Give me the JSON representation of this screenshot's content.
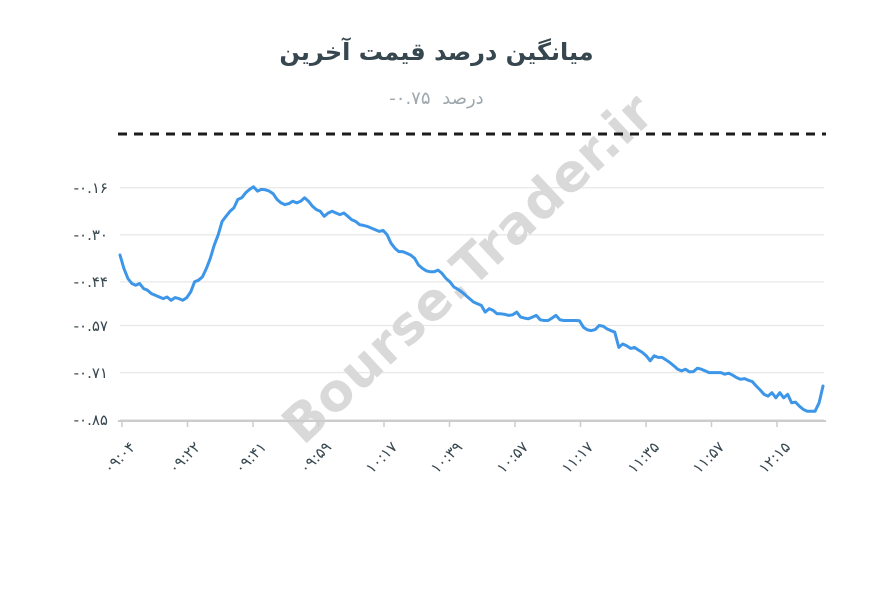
{
  "title": "میانگین درصد قیمت آخرین",
  "subtitle": {
    "value": "-۰.۷۵",
    "unit": "درصد"
  },
  "watermark": "Bourse.Trader.ir",
  "colors": {
    "series": "#3d96e8",
    "grid": "#e8e8e8",
    "axis": "#cccccc",
    "zero_line": "#1c1c1c",
    "title": "#37474f",
    "subtitle": "#9ea7ad",
    "label": "#37474f",
    "watermark": "#d9d9d9",
    "background": "#ffffff"
  },
  "chart_data": {
    "type": "line",
    "title": "میانگین درصد قیمت آخرین",
    "subtitle": "-۰.۷۵ درصد",
    "xlabel": "",
    "ylabel": "",
    "grid": "horizontal",
    "legend": "none",
    "zero_reference_value": 0,
    "ylim": [
      -0.87,
      0.02
    ],
    "y_tick_labels": [
      "-۰.۱۶",
      "-۰.۳۰",
      "-۰.۴۴",
      "-۰.۵۷",
      "-۰.۷۱",
      "-۰.۸۵"
    ],
    "y_tick_values": [
      -0.16,
      -0.3,
      -0.44,
      -0.57,
      -0.71,
      -0.85
    ],
    "x_tick_labels": [
      "۰۹:۰۴",
      "۰۹:۲۲",
      "۰۹:۴۱",
      "۰۹:۵۹",
      "۱۰:۱۷",
      "۱۰:۳۹",
      "۱۰:۵۷",
      "۱۱:۱۷",
      "۱۱:۳۵",
      "۱۱:۵۷",
      "۱۲:۱۵"
    ],
    "x_tick_labels_latin": [
      "09:04",
      "09:22",
      "09:41",
      "09:59",
      "10:17",
      "10:39",
      "10:57",
      "11:17",
      "11:35",
      "11:57",
      "12:15"
    ],
    "series": [
      {
        "name": "میانگین درصد قیمت آخرین",
        "values": [
          -0.36,
          -0.4,
          -0.43,
          -0.445,
          -0.45,
          -0.445,
          -0.46,
          -0.465,
          -0.475,
          -0.48,
          -0.485,
          -0.49,
          -0.485,
          -0.495,
          -0.487,
          -0.49,
          -0.495,
          -0.487,
          -0.47,
          -0.44,
          -0.435,
          -0.425,
          -0.4,
          -0.37,
          -0.33,
          -0.3,
          -0.26,
          -0.245,
          -0.23,
          -0.22,
          -0.195,
          -0.19,
          -0.175,
          -0.165,
          -0.157,
          -0.17,
          -0.165,
          -0.166,
          -0.17,
          -0.178,
          -0.195,
          -0.205,
          -0.21,
          -0.207,
          -0.2,
          -0.205,
          -0.2,
          -0.19,
          -0.2,
          -0.215,
          -0.225,
          -0.23,
          -0.245,
          -0.235,
          -0.23,
          -0.235,
          -0.24,
          -0.235,
          -0.245,
          -0.255,
          -0.26,
          -0.27,
          -0.272,
          -0.275,
          -0.28,
          -0.285,
          -0.29,
          -0.287,
          -0.3,
          -0.325,
          -0.34,
          -0.35,
          -0.35,
          -0.355,
          -0.36,
          -0.37,
          -0.39,
          -0.4,
          -0.407,
          -0.41,
          -0.41,
          -0.405,
          -0.415,
          -0.43,
          -0.44,
          -0.455,
          -0.462,
          -0.47,
          -0.48,
          -0.49,
          -0.5,
          -0.505,
          -0.51,
          -0.53,
          -0.52,
          -0.525,
          -0.535,
          -0.535,
          -0.537,
          -0.54,
          -0.538,
          -0.53,
          -0.545,
          -0.548,
          -0.55,
          -0.545,
          -0.54,
          -0.553,
          -0.555,
          -0.555,
          -0.548,
          -0.54,
          -0.553,
          -0.555,
          -0.555,
          -0.555,
          -0.555,
          -0.556,
          -0.575,
          -0.583,
          -0.585,
          -0.582,
          -0.57,
          -0.572,
          -0.58,
          -0.585,
          -0.59,
          -0.635,
          -0.625,
          -0.63,
          -0.638,
          -0.635,
          -0.643,
          -0.65,
          -0.66,
          -0.675,
          -0.66,
          -0.665,
          -0.665,
          -0.672,
          -0.68,
          -0.69,
          -0.7,
          -0.705,
          -0.7,
          -0.708,
          -0.707,
          -0.697,
          -0.7,
          -0.705,
          -0.71,
          -0.71,
          -0.71,
          -0.71,
          -0.715,
          -0.712,
          -0.718,
          -0.725,
          -0.73,
          -0.728,
          -0.733,
          -0.737,
          -0.75,
          -0.762,
          -0.775,
          -0.78,
          -0.77,
          -0.785,
          -0.77,
          -0.785,
          -0.775,
          -0.8,
          -0.798,
          -0.81,
          -0.82,
          -0.825,
          -0.825,
          -0.825,
          -0.8,
          -0.75
        ]
      }
    ]
  }
}
